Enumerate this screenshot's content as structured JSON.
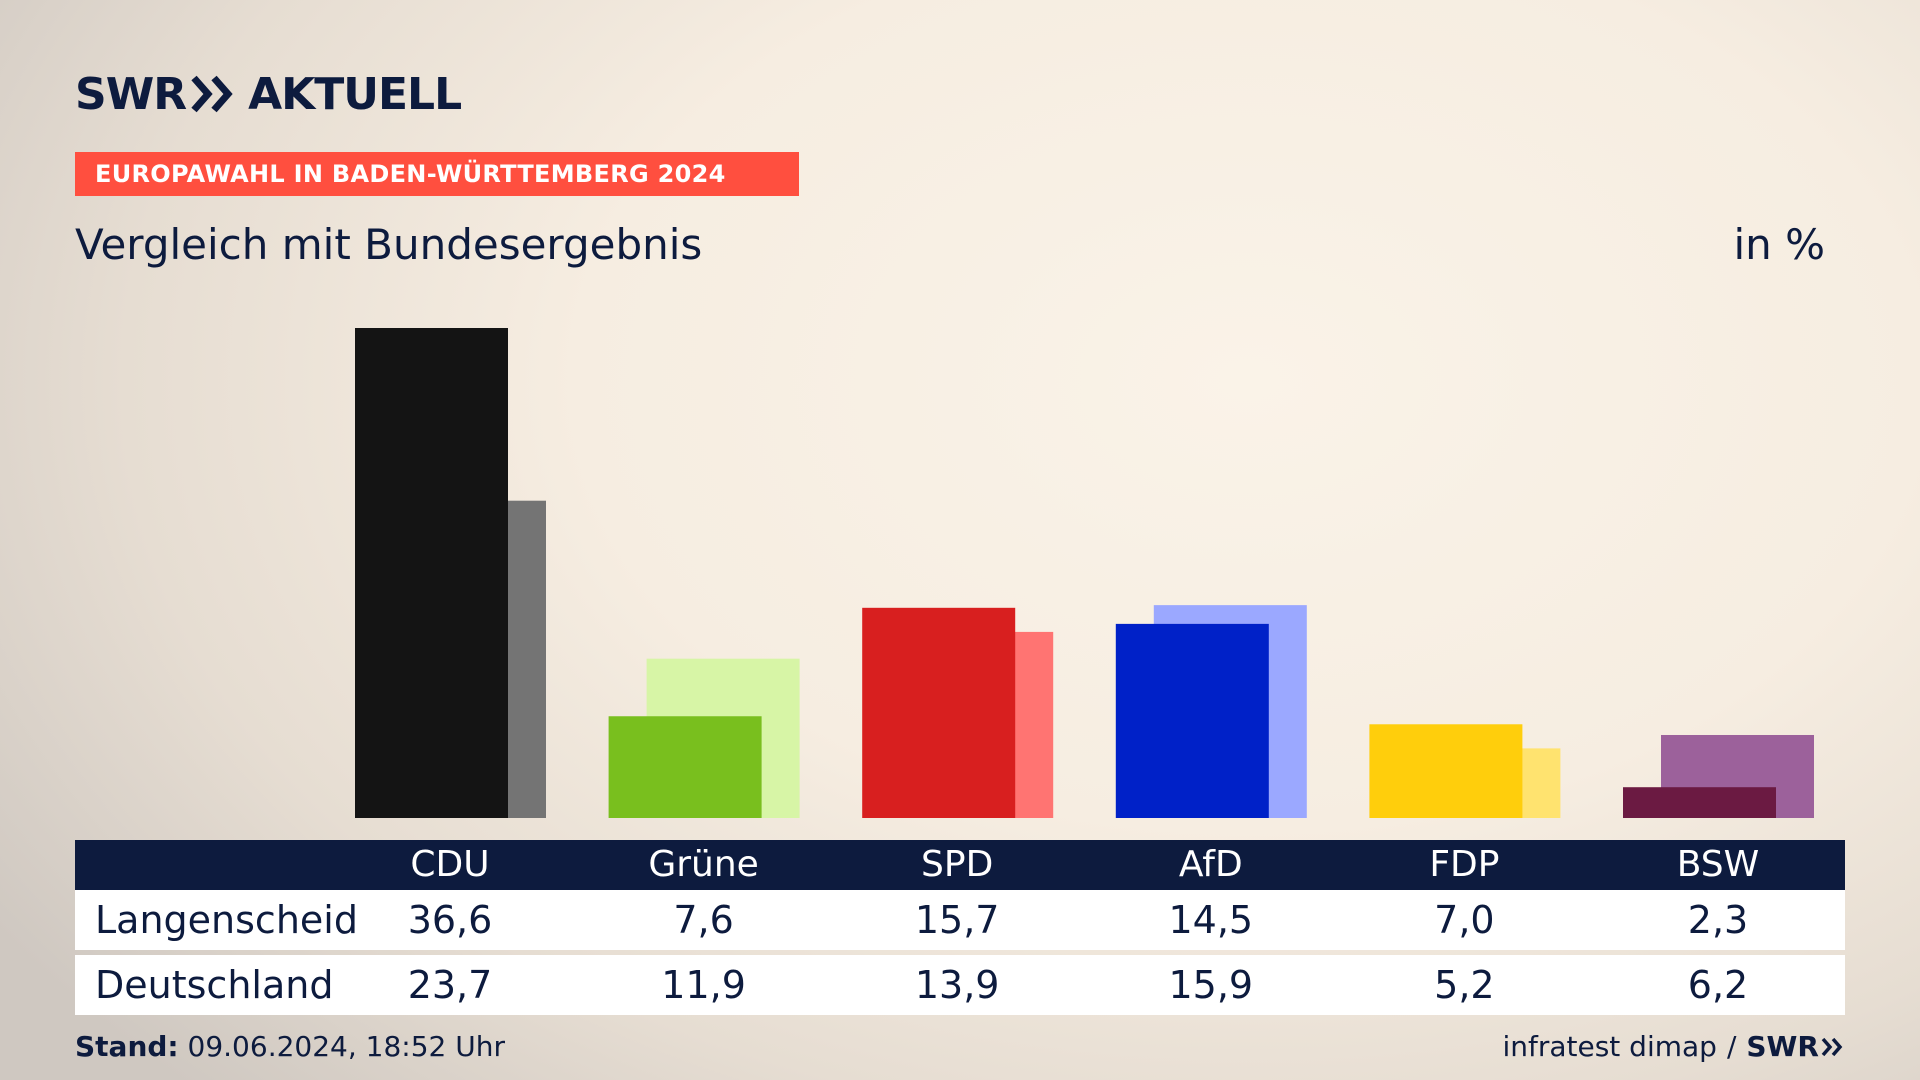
{
  "brand": {
    "part1": "SWR",
    "part2": "AKTUELL",
    "color": "#0d1b3e"
  },
  "event": {
    "label": "EUROPAWAHL IN BADEN-WÜRTTEMBERG 2024",
    "color": "#ff4f3f"
  },
  "title": "Vergleich mit Bundesergebnis",
  "unit": "in %",
  "table": {
    "rows": [
      {
        "label": "Langenscheid"
      },
      {
        "label": "Deutschland"
      }
    ]
  },
  "footer": {
    "stand_label": "Stand:",
    "stand_value": "09.06.2024, 18:52 Uhr",
    "source": "infratest dimap",
    "separator": "/",
    "source_brand": "SWR"
  },
  "chart_data": {
    "type": "bar",
    "categories": [
      "CDU",
      "Grüne",
      "SPD",
      "AfD",
      "FDP",
      "BSW"
    ],
    "series": [
      {
        "name": "Langenscheid",
        "values": [
          36.6,
          7.6,
          15.7,
          14.5,
          7.0,
          2.3
        ],
        "values_text": [
          "36,6",
          "7,6",
          "15,7",
          "14,5",
          "7,0",
          "2,3"
        ],
        "colors": [
          "#141414",
          "#79bf1e",
          "#d81f1f",
          "#0021c8",
          "#ffce0c",
          "#6b1a42"
        ]
      },
      {
        "name": "Deutschland",
        "values": [
          23.7,
          11.9,
          13.9,
          15.9,
          5.2,
          6.2
        ],
        "values_text": [
          "23,7",
          "11,9",
          "13,9",
          "15,9",
          "5,2",
          "6,2"
        ],
        "colors": [
          "#747474",
          "#d7f5a6",
          "#ff7472",
          "#9ba8ff",
          "#ffe36f",
          "#9c619b"
        ]
      }
    ],
    "ylim": [
      0,
      36.6
    ],
    "grid": false,
    "legend": "table-below"
  }
}
